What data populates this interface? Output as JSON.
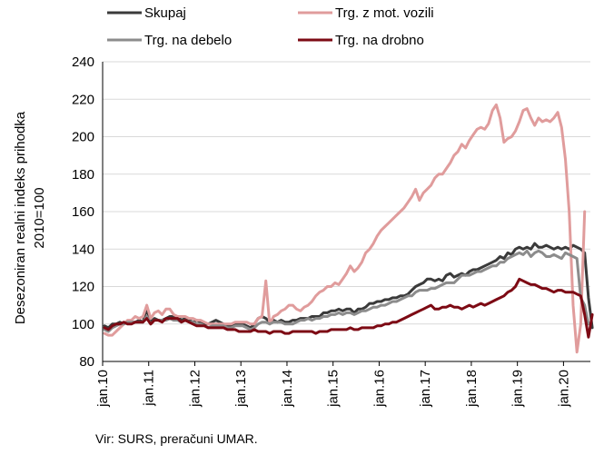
{
  "chart_data": {
    "type": "line",
    "ylabel": "Desezoniran realni indeks prihodka",
    "ylabel2": "2010=100",
    "ylim": [
      80,
      240
    ],
    "yticks": [
      80,
      100,
      120,
      140,
      160,
      180,
      200,
      220,
      240
    ],
    "x_start": "2010-01",
    "x_tick_labels": [
      "jan.10",
      "jan.11",
      "jan.12",
      "jan.13",
      "jan.14",
      "jan.15",
      "jan.16",
      "jan.17",
      "jan.18",
      "jan.19",
      "jan.20"
    ],
    "grid": "horizontal",
    "legend_position": "top",
    "source": "Vir: SURS, preračuni UMAR.",
    "series": [
      {
        "name": "Skupaj",
        "color": "#3a3a3a",
        "values": [
          99,
          98,
          100,
          100,
          101,
          100,
          101,
          101,
          101,
          102,
          101,
          108,
          101,
          103,
          102,
          102,
          103,
          104,
          104,
          104,
          102,
          103,
          102,
          101,
          102,
          101,
          100,
          100,
          101,
          102,
          101,
          100,
          99,
          99,
          100,
          100,
          100,
          99,
          98,
          100,
          103,
          104,
          103,
          101,
          102,
          101,
          102,
          101,
          101,
          102,
          102,
          103,
          103,
          103,
          104,
          104,
          104,
          106,
          106,
          107,
          107,
          108,
          107,
          108,
          108,
          106,
          108,
          108,
          109,
          111,
          111,
          112,
          112,
          113,
          113,
          114,
          114,
          115,
          115,
          116,
          118,
          120,
          121,
          122,
          124,
          124,
          123,
          124,
          123,
          126,
          127,
          125,
          126,
          127,
          126,
          128,
          129,
          129,
          130,
          131,
          132,
          133,
          134,
          136,
          135,
          138,
          137,
          140,
          141,
          140,
          141,
          140,
          143,
          141,
          141,
          142,
          141,
          140,
          141,
          140,
          141,
          140,
          142,
          141,
          140,
          138,
          114,
          98
        ]
      },
      {
        "name": "Trg. z mot. vozili",
        "color": "#e09c9c",
        "values": [
          95,
          94,
          94,
          96,
          98,
          100,
          102,
          102,
          104,
          103,
          104,
          110,
          103,
          106,
          107,
          105,
          108,
          108,
          105,
          104,
          104,
          104,
          103,
          103,
          102,
          102,
          101,
          100,
          100,
          100,
          100,
          100,
          100,
          100,
          101,
          101,
          101,
          101,
          100,
          100,
          103,
          104,
          123,
          100,
          104,
          105,
          107,
          108,
          110,
          110,
          108,
          107,
          109,
          110,
          112,
          115,
          117,
          118,
          120,
          120,
          122,
          121,
          124,
          127,
          131,
          128,
          130,
          133,
          138,
          140,
          143,
          147,
          150,
          152,
          154,
          156,
          158,
          160,
          162,
          165,
          168,
          172,
          166,
          170,
          172,
          174,
          178,
          180,
          180,
          183,
          186,
          190,
          192,
          196,
          194,
          198,
          201,
          204,
          205,
          204,
          207,
          214,
          217,
          210,
          197,
          199,
          200,
          203,
          208,
          214,
          215,
          210,
          206,
          210,
          208,
          209,
          208,
          210,
          213,
          205,
          188,
          160,
          110,
          85,
          100,
          160
        ]
      },
      {
        "name": "Trg. na debelo",
        "color": "#8c8c8c",
        "values": [
          97,
          96,
          98,
          99,
          100,
          100,
          101,
          101,
          101,
          101,
          101,
          104,
          100,
          102,
          102,
          102,
          102,
          103,
          102,
          102,
          101,
          102,
          101,
          101,
          100,
          100,
          99,
          98,
          99,
          99,
          99,
          99,
          98,
          98,
          99,
          99,
          99,
          98,
          97,
          98,
          100,
          101,
          101,
          100,
          101,
          101,
          101,
          100,
          100,
          100,
          101,
          102,
          102,
          103,
          102,
          103,
          103,
          104,
          104,
          105,
          105,
          106,
          105,
          106,
          106,
          105,
          106,
          107,
          107,
          108,
          109,
          109,
          110,
          110,
          111,
          112,
          112,
          113,
          114,
          115,
          115,
          117,
          118,
          118,
          118,
          119,
          119,
          120,
          121,
          122,
          122,
          122,
          124,
          126,
          126,
          126,
          127,
          128,
          128,
          129,
          130,
          131,
          131,
          133,
          133,
          135,
          136,
          137,
          138,
          137,
          139,
          136,
          138,
          139,
          138,
          136,
          136,
          137,
          136,
          135,
          138,
          137,
          136,
          135,
          114,
          110,
          100
        ]
      },
      {
        "name": "Trg. na drobno",
        "color": "#7d0a14",
        "values": [
          98,
          97,
          99,
          100,
          100,
          101,
          100,
          100,
          101,
          101,
          101,
          103,
          100,
          102,
          102,
          101,
          103,
          103,
          103,
          103,
          101,
          102,
          101,
          100,
          99,
          99,
          99,
          98,
          98,
          98,
          98,
          98,
          97,
          97,
          97,
          96,
          96,
          96,
          96,
          97,
          96,
          96,
          96,
          95,
          96,
          96,
          96,
          95,
          95,
          96,
          96,
          96,
          96,
          96,
          96,
          95,
          96,
          96,
          96,
          97,
          97,
          97,
          97,
          97,
          98,
          97,
          97,
          98,
          98,
          98,
          98,
          99,
          99,
          100,
          100,
          101,
          101,
          102,
          103,
          104,
          105,
          106,
          107,
          108,
          109,
          110,
          108,
          108,
          109,
          109,
          110,
          109,
          109,
          108,
          109,
          110,
          109,
          110,
          111,
          110,
          111,
          112,
          113,
          114,
          115,
          117,
          118,
          120,
          124,
          123,
          122,
          121,
          121,
          120,
          119,
          119,
          118,
          117,
          118,
          118,
          117,
          117,
          117,
          116,
          115,
          105,
          93,
          105
        ]
      }
    ]
  }
}
